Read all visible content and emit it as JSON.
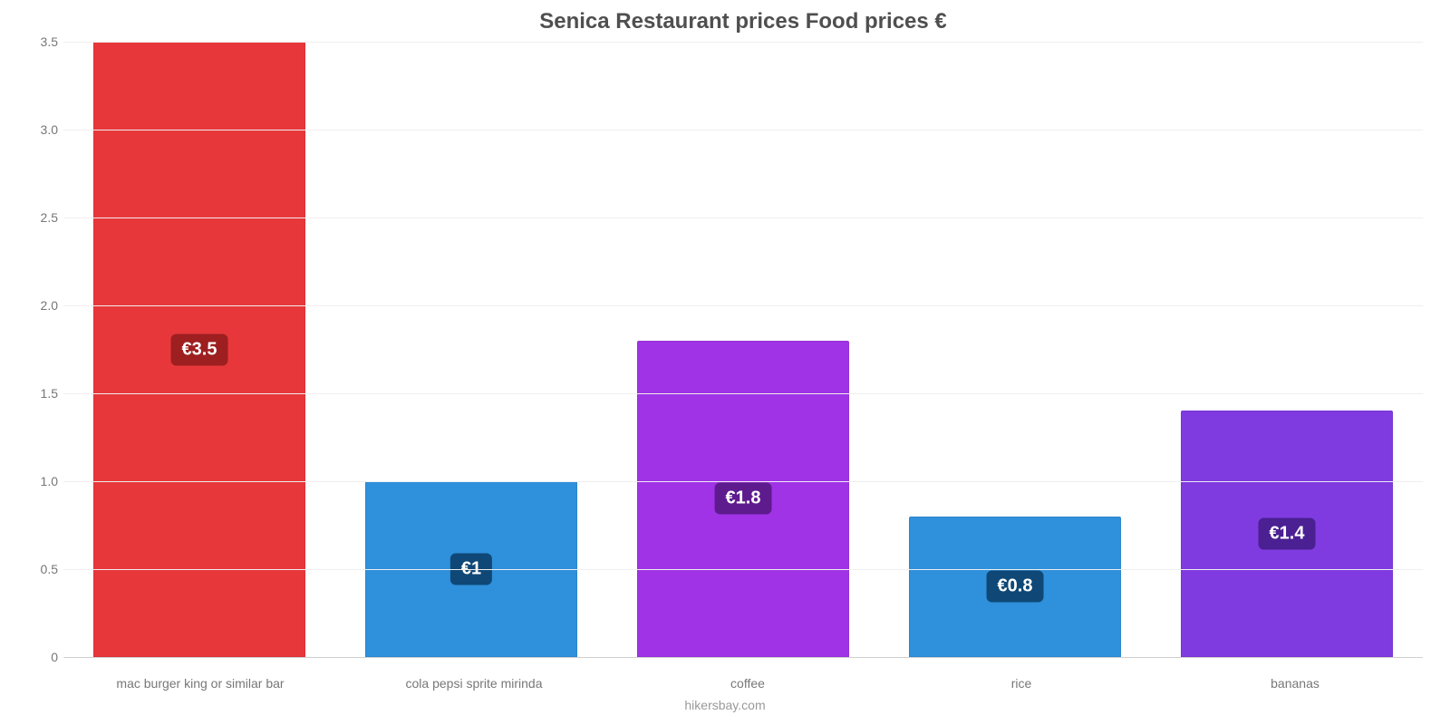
{
  "chart": {
    "type": "bar",
    "title": "Senica Restaurant prices Food prices €",
    "title_color": "#4f4f4f",
    "title_fontsize": 24,
    "source": "hikersbay.com",
    "background_color": "#ffffff",
    "grid_color": "#efefef",
    "axis_color": "#d0d0d0",
    "tick_font_color": "#777777",
    "tick_fontsize": 14,
    "label_fontsize": 14,
    "ylim": [
      0,
      3.5
    ],
    "ytick_step": 0.5,
    "y_ticks": [
      "0",
      "0.5",
      "1.0",
      "1.5",
      "2.0",
      "2.5",
      "3.0",
      "3.5"
    ],
    "bar_width_pct": 78,
    "categories": [
      "mac burger king or similar bar",
      "cola pepsi sprite mirinda",
      "coffee",
      "rice",
      "bananas"
    ],
    "values": [
      3.5,
      1.0,
      1.8,
      0.8,
      1.4
    ],
    "value_labels": [
      "€3.5",
      "€1",
      "€1.8",
      "€0.8",
      "€1.4"
    ],
    "bar_colors": [
      "#e8373b",
      "#2f90db",
      "#a033e6",
      "#2f90db",
      "#7f3be0"
    ],
    "badge_bg_colors": [
      "#9d1f1f",
      "#0f4876",
      "#5e1b8e",
      "#0f4876",
      "#4a2092"
    ],
    "badge_text_color": "#ffffff",
    "badge_fontsize": 20
  }
}
